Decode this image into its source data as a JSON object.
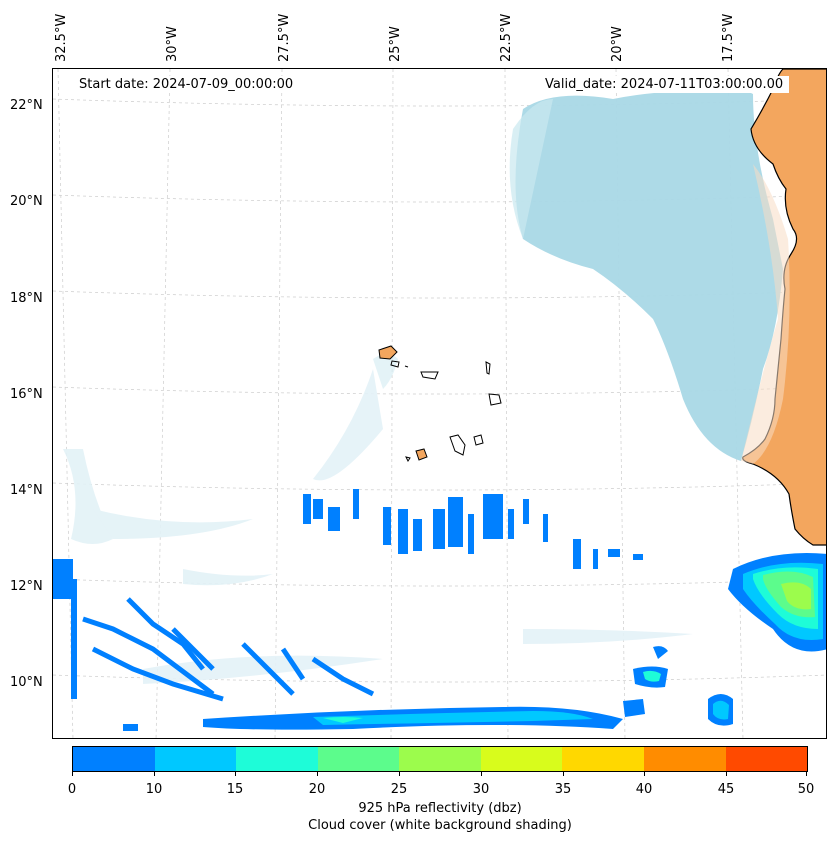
{
  "map": {
    "start_date": "Start date: 2024-07-09_00:00:00",
    "valid_date": "Valid_date: 2024-07-11T03:00:00.00",
    "lon_labels": [
      "32.5°W",
      "30°W",
      "27.5°W",
      "25°W",
      "22.5°W",
      "20°W",
      "17.5°W"
    ],
    "lat_labels": [
      "22°N",
      "20°N",
      "18°N",
      "16°N",
      "14°N",
      "12°N",
      "10°N"
    ],
    "land_color": "#f3a65e",
    "cloud_color": "#a9d8e6",
    "coast_color": "#000000"
  },
  "colorbar": {
    "ticks": [
      "0",
      "10",
      "15",
      "20",
      "25",
      "30",
      "35",
      "40",
      "45",
      "50"
    ],
    "colors": [
      "#0080ff",
      "#00c8ff",
      "#1efcd8",
      "#5cfc8c",
      "#9cfc4c",
      "#d8fc1c",
      "#ffd800",
      "#ff8c00",
      "#ff4a00"
    ],
    "label": "925 hPa reflectivity (dbz)",
    "sublabel": "Cloud cover (white background shading)"
  }
}
